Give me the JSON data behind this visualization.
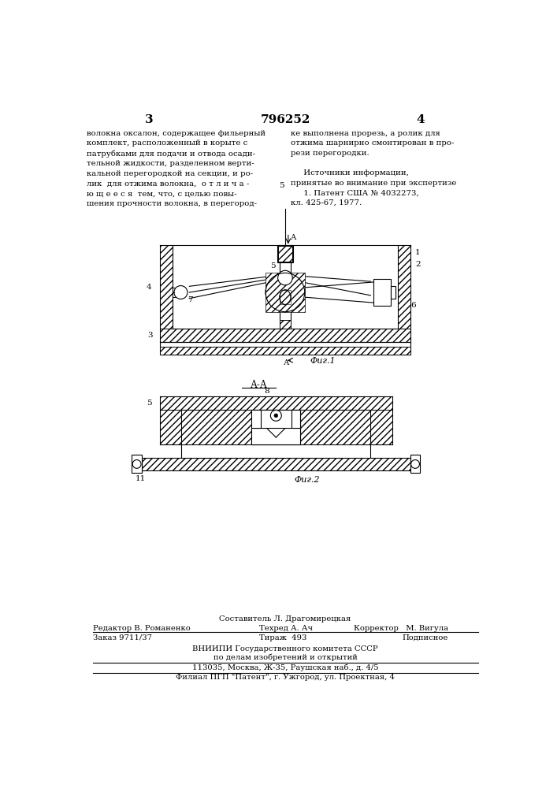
{
  "page_number_left": "3",
  "page_number_center": "796252",
  "page_number_right": "4",
  "text_left": "волокна оксалон, содержащее фильерный\nкомплект, расположенный в корыте с\nпатрубками для подачи и отвода осади-\nтельной жидкости, разделенном верти-\nкальной перегородкой на секции, и ро-\nлик  для отжима волокна,  о т л и ч а -\nю щ е е с я  тем, что, с целью повы-\nшения прочности волокна, в перегород-",
  "text_right": "ке выполнена прорезь, а ролик для\nотжима шарнирно смонтирован в про-\nрези перегородки.\n\n     Источники информации,\nпринятые во внимание при экспертизе\n     1. Патент США № 4032273,\nкл. 425-67, 1977.",
  "claim_number": "5",
  "fig1_label": "Фиг.1",
  "fig2_label": "Фиг.2",
  "section_label": "А-А",
  "bg_color": "#ffffff",
  "text_color": "#000000",
  "footer_line1": "Составитель Л. Драгомирецкая",
  "footer_line2_parts": [
    "Редактор В. Романенко",
    "Техред А. Ач",
    "Корректор   М. Вигула"
  ],
  "footer_line3_parts": [
    "Заказ 9711/37",
    "Тираж  493",
    "Подписное"
  ],
  "footer_line4": "ВНИИПИ Государственного комитета СССР",
  "footer_line5": "по делам изобретений и открытий",
  "footer_line6": "113035, Москва, Ж-35, Раушская наб., д. 4/5",
  "footer_line7": "Филиал ПГП \"Патент\", г. Ужгород, ул. Проектная, 4"
}
